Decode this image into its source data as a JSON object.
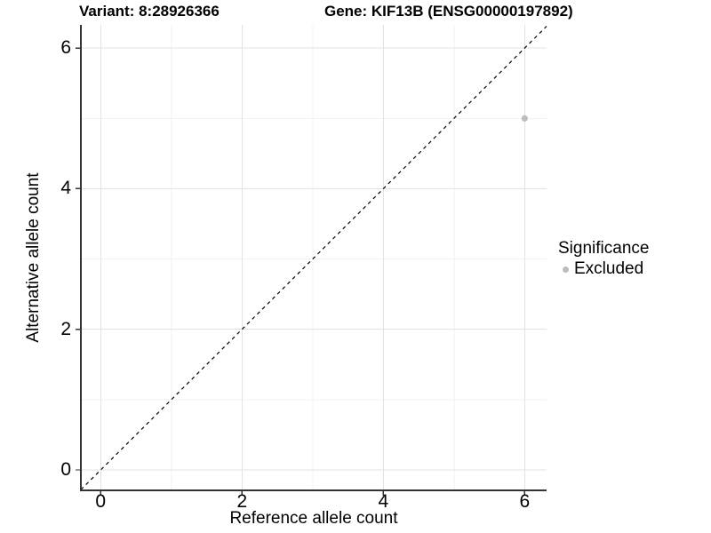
{
  "chart_data": {
    "type": "scatter",
    "title_left": "Variant: 8:28926366",
    "title_right": "Gene: KIF13B (ENSG00000197892)",
    "xlabel": "Reference allele count",
    "ylabel": "Alternative allele count",
    "xlim": [
      -0.28,
      6.31
    ],
    "ylim": [
      -0.29,
      6.33
    ],
    "x_major_ticks": [
      0,
      2,
      4,
      6
    ],
    "x_minor_ticks": [
      1,
      3,
      5
    ],
    "y_major_ticks": [
      0,
      2,
      4,
      6
    ],
    "y_minor_ticks": [
      1,
      3,
      5
    ],
    "grid": "major and minor gridlines on white panel",
    "reference_line": {
      "type": "identity y=x",
      "style": "dashed"
    },
    "series": [
      {
        "name": "Excluded",
        "color": "#bdbdbd",
        "point_radius": 3.6,
        "points": [
          {
            "x": 6,
            "y": 5
          }
        ]
      }
    ],
    "legend": {
      "position": "right",
      "title": "Significance",
      "items": [
        {
          "label": "Excluded",
          "color": "#bdbdbd"
        }
      ]
    }
  },
  "colors": {
    "background": "#ffffff",
    "grid_major": "#e3e3e3",
    "grid_minor": "#f1f1f1",
    "axis_line": "#333333",
    "tick_mark": "#333333",
    "text": "#000000",
    "point": "#bdbdbd",
    "reference_line": "#000000"
  }
}
